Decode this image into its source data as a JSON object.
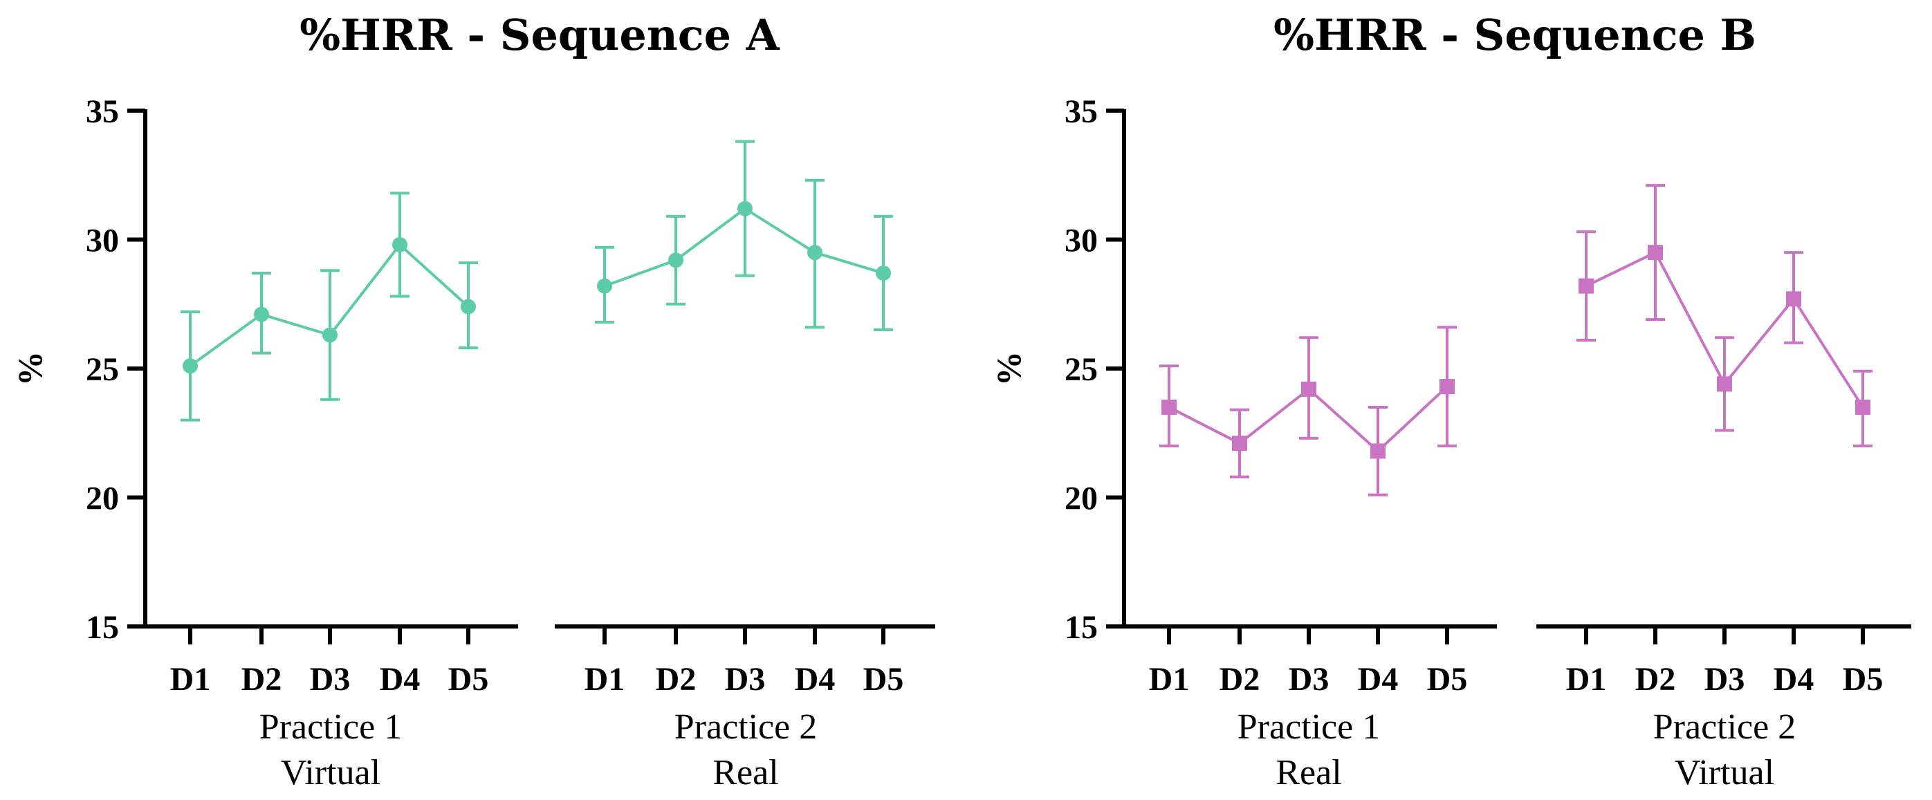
{
  "chart_data": [
    {
      "type": "line",
      "title": "%HRR - Sequence A",
      "ylabel": "%",
      "ylim": [
        15,
        35
      ],
      "yticks": [
        15,
        20,
        25,
        30,
        35
      ],
      "color": "#5BCBA8",
      "marker": "circle",
      "groups": [
        {
          "label_lines": [
            "Practice 1",
            "Virtual"
          ],
          "categories": [
            "D1",
            "D2",
            "D3",
            "D4",
            "D5"
          ],
          "values": [
            25.1,
            27.1,
            26.3,
            29.8,
            27.4
          ],
          "err_low": [
            23.0,
            25.6,
            23.8,
            27.8,
            25.8
          ],
          "err_high": [
            27.2,
            28.7,
            28.8,
            31.8,
            29.1
          ]
        },
        {
          "label_lines": [
            "Practice 2",
            "Real"
          ],
          "categories": [
            "D1",
            "D2",
            "D3",
            "D4",
            "D5"
          ],
          "values": [
            28.2,
            29.2,
            31.2,
            29.5,
            28.7
          ],
          "err_low": [
            26.8,
            27.5,
            28.6,
            26.6,
            26.5
          ],
          "err_high": [
            29.7,
            30.9,
            33.8,
            32.3,
            30.9
          ]
        }
      ]
    },
    {
      "type": "line",
      "title": "%HRR - Sequence B",
      "ylabel": "%",
      "ylim": [
        15,
        35
      ],
      "yticks": [
        15,
        20,
        25,
        30,
        35
      ],
      "color": "#C874C3",
      "marker": "square",
      "groups": [
        {
          "label_lines": [
            "Practice 1",
            "Real"
          ],
          "categories": [
            "D1",
            "D2",
            "D3",
            "D4",
            "D5"
          ],
          "values": [
            23.5,
            22.1,
            24.2,
            21.8,
            24.3
          ],
          "err_low": [
            22.0,
            20.8,
            22.3,
            20.1,
            22.0
          ],
          "err_high": [
            25.1,
            23.4,
            26.2,
            23.5,
            26.6
          ]
        },
        {
          "label_lines": [
            "Practice 2",
            "Virtual"
          ],
          "categories": [
            "D1",
            "D2",
            "D3",
            "D4",
            "D5"
          ],
          "values": [
            28.2,
            29.5,
            24.4,
            27.7,
            23.5
          ],
          "err_low": [
            26.1,
            26.9,
            22.6,
            26.0,
            22.0
          ],
          "err_high": [
            30.3,
            32.1,
            26.2,
            29.5,
            24.9
          ]
        }
      ]
    }
  ]
}
